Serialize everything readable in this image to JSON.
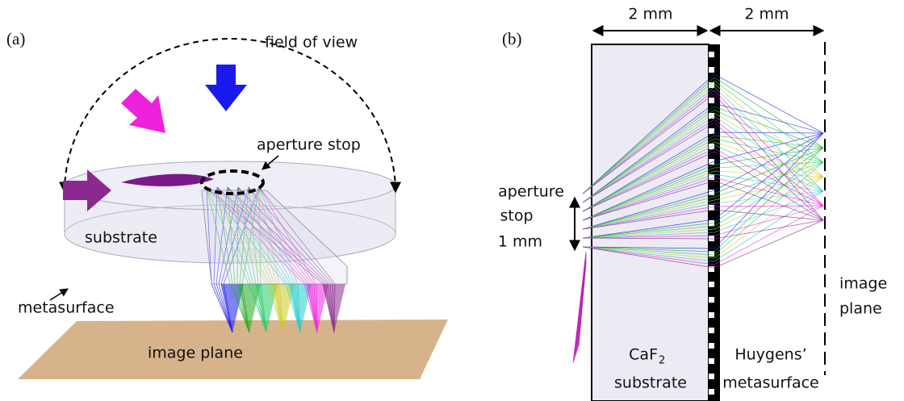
{
  "panel_a": {
    "label": "(a)",
    "field_of_view": "field of view",
    "aperture_stop": "aperture stop",
    "substrate": "substrate",
    "metasurface": "metasurface",
    "image_plane": "image plane"
  },
  "panel_b": {
    "label": "(b)",
    "substrate_width": "2 mm",
    "gap_width": "2 mm",
    "aperture_stop": [
      "aperture",
      "stop"
    ],
    "aperture_size": "1 mm",
    "image_plane": [
      "image",
      "plane"
    ],
    "substrate_label": {
      "material": "CaF",
      "subscript": "2",
      "word": "substrate"
    },
    "metasurface_label": [
      "Huygens’",
      "metasurface"
    ]
  }
}
